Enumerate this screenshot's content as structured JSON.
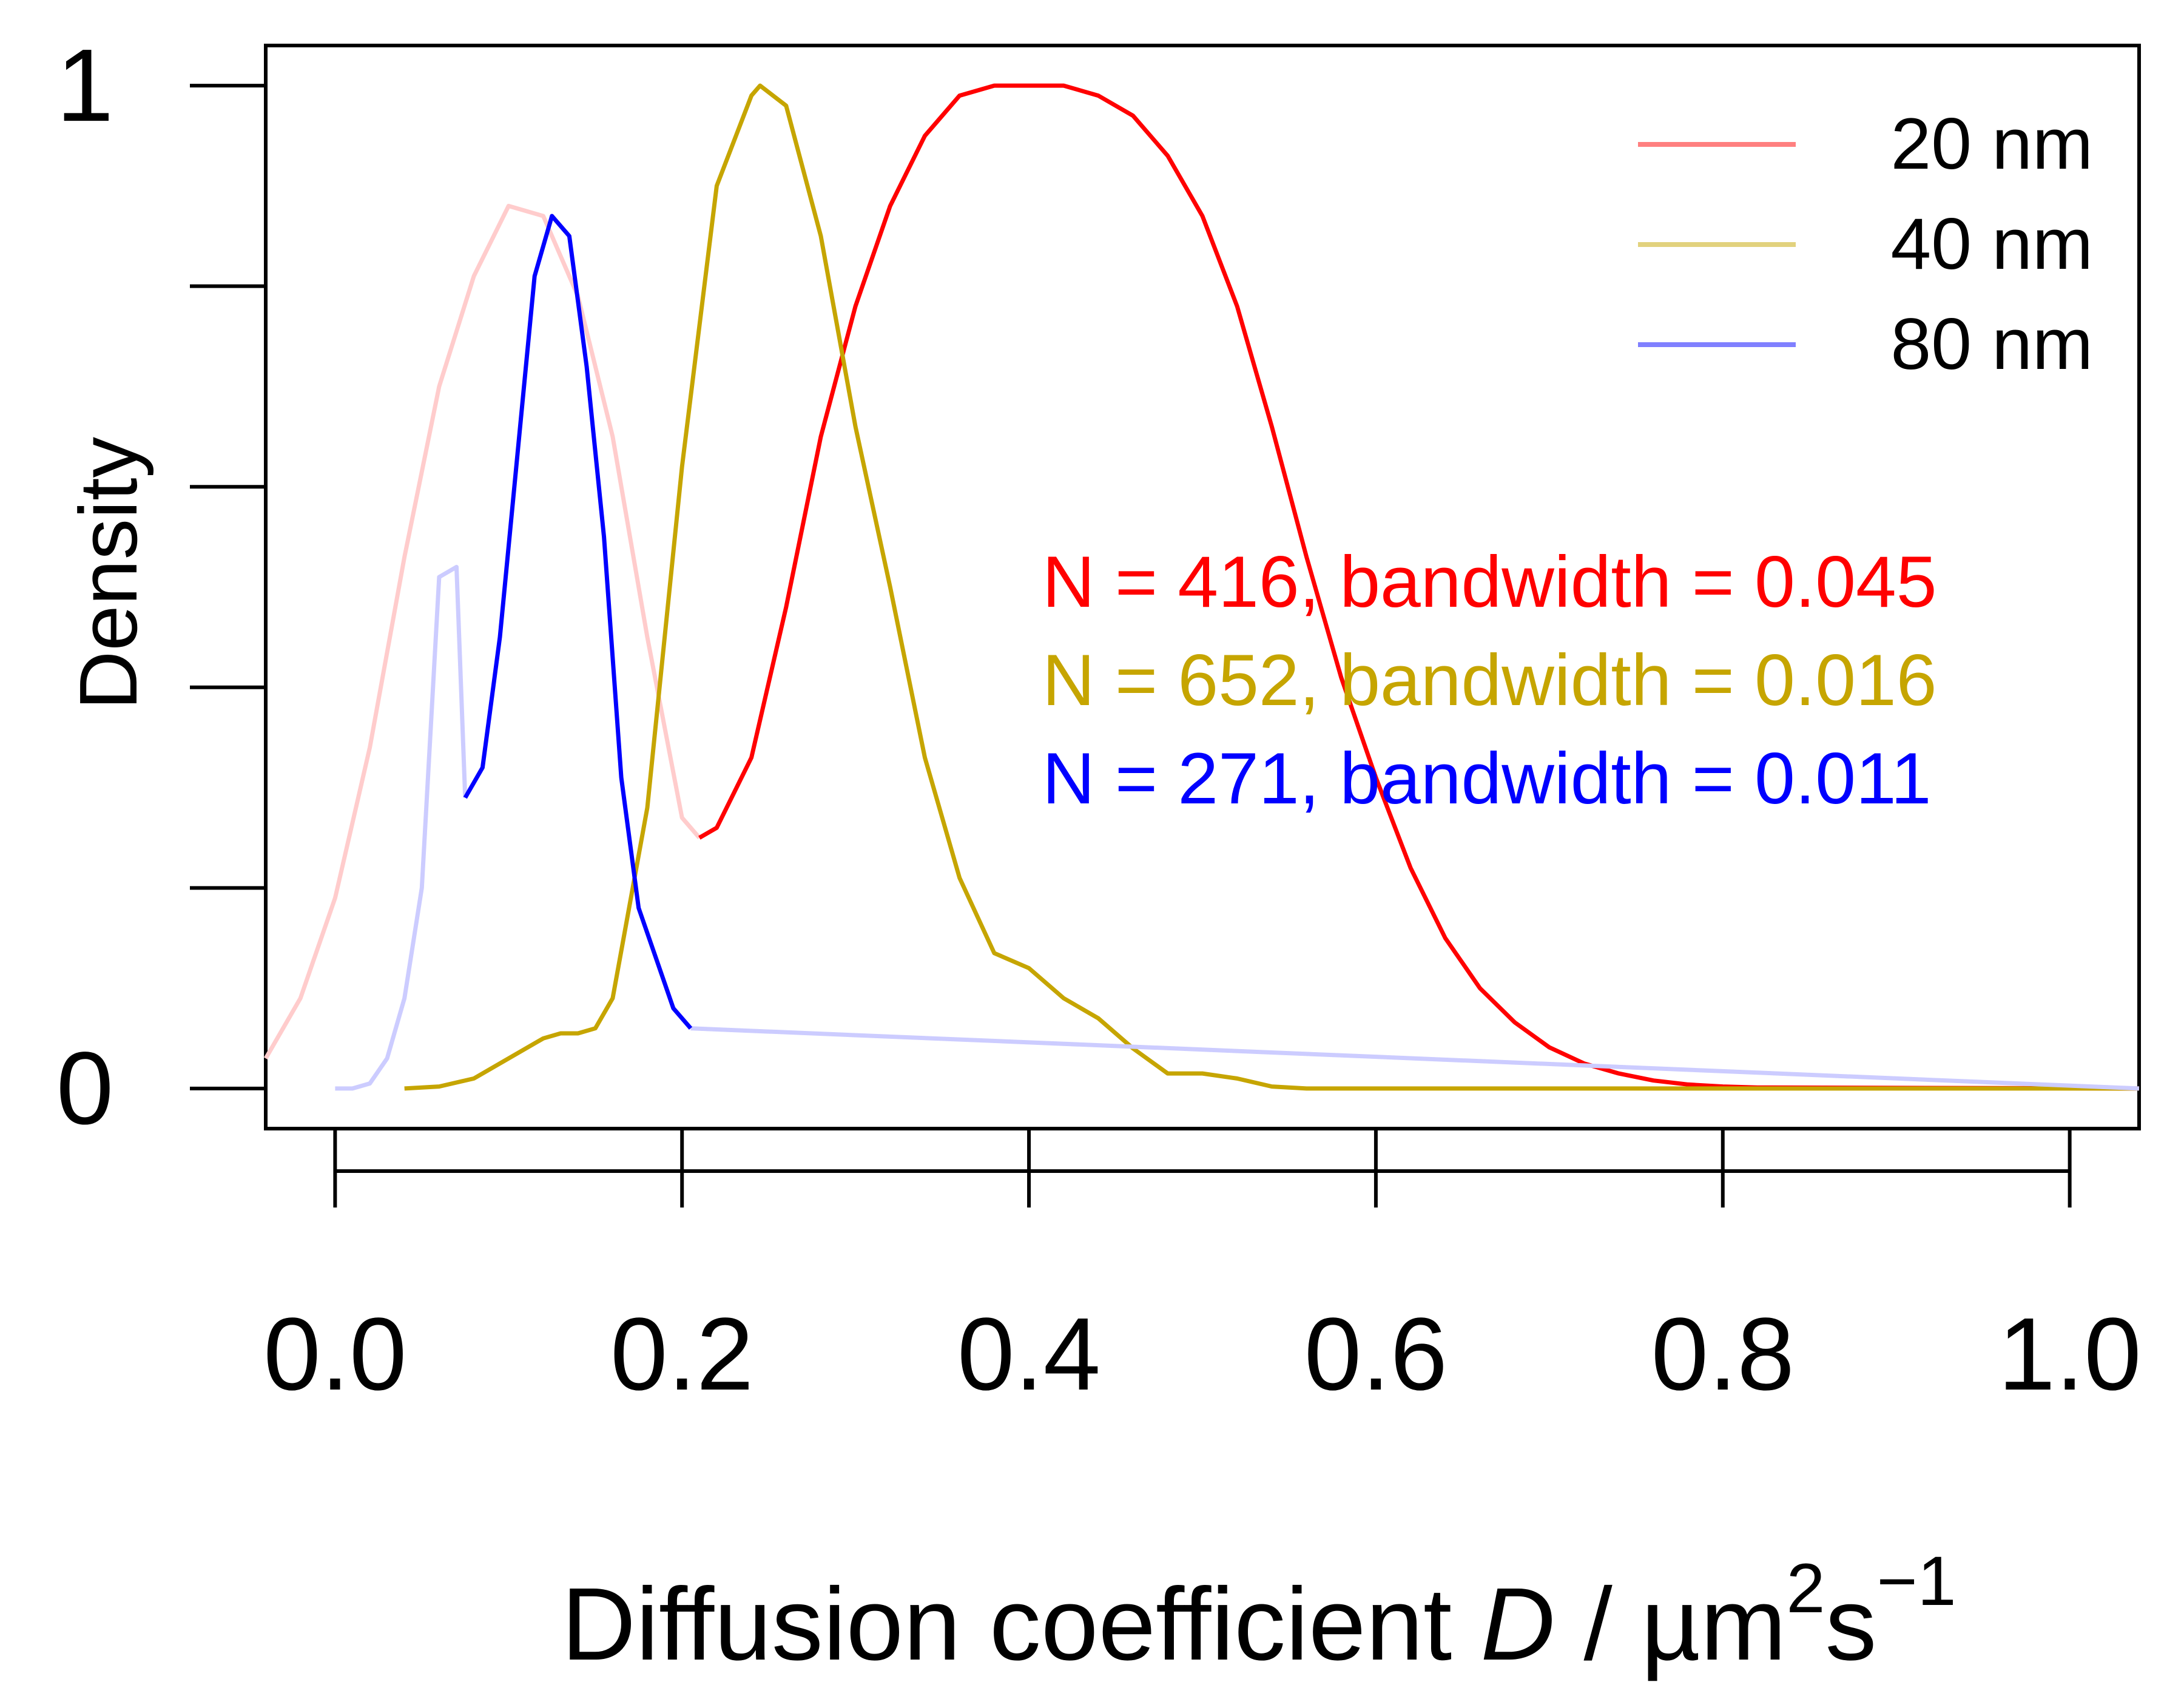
{
  "chart_data": {
    "type": "line",
    "title": "",
    "xlabel": {
      "prefix": "Diffusion coefficient ",
      "italic": "D",
      "unit": " / µm",
      "sup1": "2",
      "mid": "s",
      "sup2": "−1"
    },
    "ylabel": "Density",
    "xlim": [
      -0.04,
      1.04
    ],
    "ylim": [
      -0.04,
      1.04
    ],
    "x_ticks": [
      0.0,
      0.2,
      0.4,
      0.6,
      0.8,
      1.0
    ],
    "x_tick_labels": [
      "0.0",
      "0.2",
      "0.4",
      "0.6",
      "0.8",
      "1.0"
    ],
    "y_ticks": [
      0,
      0.2,
      0.4,
      0.6,
      0.8,
      1
    ],
    "y_tick_labels": [
      {
        "value": 0,
        "text": "0"
      },
      {
        "value": 1,
        "text": "1"
      }
    ],
    "legend": {
      "position": "top-right",
      "entries": [
        {
          "label": "20 nm",
          "color": "#ff8080"
        },
        {
          "label": "40 nm",
          "color": "#e2d27e"
        },
        {
          "label": "80 nm",
          "color": "#8080ff"
        }
      ]
    },
    "annotations": [
      {
        "text": "N = 416, bandwidth = 0.045",
        "color": "#ff0000"
      },
      {
        "text": "N = 652, bandwidth = 0.016",
        "color": "#c6a500"
      },
      {
        "text": "N = 271, bandwidth = 0.011",
        "color": "#0000ff"
      }
    ],
    "series": [
      {
        "name": "20 nm",
        "color": "#ff0000",
        "faded_color": "#ffcccc",
        "x": [
          -0.04,
          -0.02,
          0.0,
          0.02,
          0.04,
          0.06,
          0.08,
          0.1,
          0.12,
          0.14,
          0.16,
          0.18,
          0.2,
          0.21,
          0.22,
          0.24,
          0.26,
          0.28,
          0.3,
          0.32,
          0.34,
          0.36,
          0.38,
          0.4,
          0.42,
          0.44,
          0.46,
          0.48,
          0.5,
          0.52,
          0.54,
          0.56,
          0.58,
          0.6,
          0.62,
          0.64,
          0.66,
          0.68,
          0.7,
          0.72,
          0.74,
          0.76,
          0.78,
          0.8,
          0.82,
          1.04
        ],
        "y": [
          0.03,
          0.09,
          0.19,
          0.34,
          0.53,
          0.7,
          0.81,
          0.88,
          0.87,
          0.79,
          0.65,
          0.45,
          0.27,
          0.25,
          0.26,
          0.33,
          0.48,
          0.65,
          0.78,
          0.88,
          0.95,
          0.99,
          1.0,
          1.0,
          1.0,
          0.99,
          0.97,
          0.93,
          0.87,
          0.78,
          0.66,
          0.53,
          0.41,
          0.31,
          0.22,
          0.15,
          0.1,
          0.066,
          0.041,
          0.025,
          0.015,
          0.008,
          0.004,
          0.002,
          0.001,
          0.0
        ],
        "faded_until": 0.21
      },
      {
        "name": "40 nm",
        "color": "#c6a500",
        "x": [
          0.04,
          0.06,
          0.08,
          0.1,
          0.12,
          0.13,
          0.14,
          0.15,
          0.16,
          0.18,
          0.2,
          0.22,
          0.24,
          0.245,
          0.26,
          0.28,
          0.3,
          0.32,
          0.34,
          0.36,
          0.38,
          0.4,
          0.42,
          0.44,
          0.46,
          0.48,
          0.5,
          0.52,
          0.54,
          0.56,
          0.6,
          1.04
        ],
        "y": [
          0.0,
          0.002,
          0.01,
          0.03,
          0.05,
          0.055,
          0.055,
          0.06,
          0.09,
          0.28,
          0.62,
          0.9,
          0.99,
          1.0,
          0.98,
          0.85,
          0.66,
          0.5,
          0.33,
          0.21,
          0.135,
          0.12,
          0.09,
          0.07,
          0.04,
          0.015,
          0.015,
          0.01,
          0.002,
          0.0,
          0.0,
          0.0
        ]
      },
      {
        "name": "80 nm",
        "color": "#0000ff",
        "faded_color": "#ccccff",
        "x": [
          0.0,
          0.01,
          0.02,
          0.03,
          0.04,
          0.05,
          0.06,
          0.07,
          0.075,
          0.085,
          0.095,
          0.105,
          0.115,
          0.125,
          0.135,
          0.145,
          0.155,
          0.165,
          0.175,
          0.185,
          0.195,
          0.205,
          1.04
        ],
        "y": [
          0.0,
          0.0,
          0.005,
          0.03,
          0.09,
          0.2,
          0.51,
          0.52,
          0.29,
          0.32,
          0.45,
          0.63,
          0.81,
          0.87,
          0.85,
          0.72,
          0.55,
          0.31,
          0.18,
          0.13,
          0.08,
          0.06,
          0.0
        ],
        "faded_until": 0.075,
        "faded_after": 0.205
      }
    ]
  }
}
